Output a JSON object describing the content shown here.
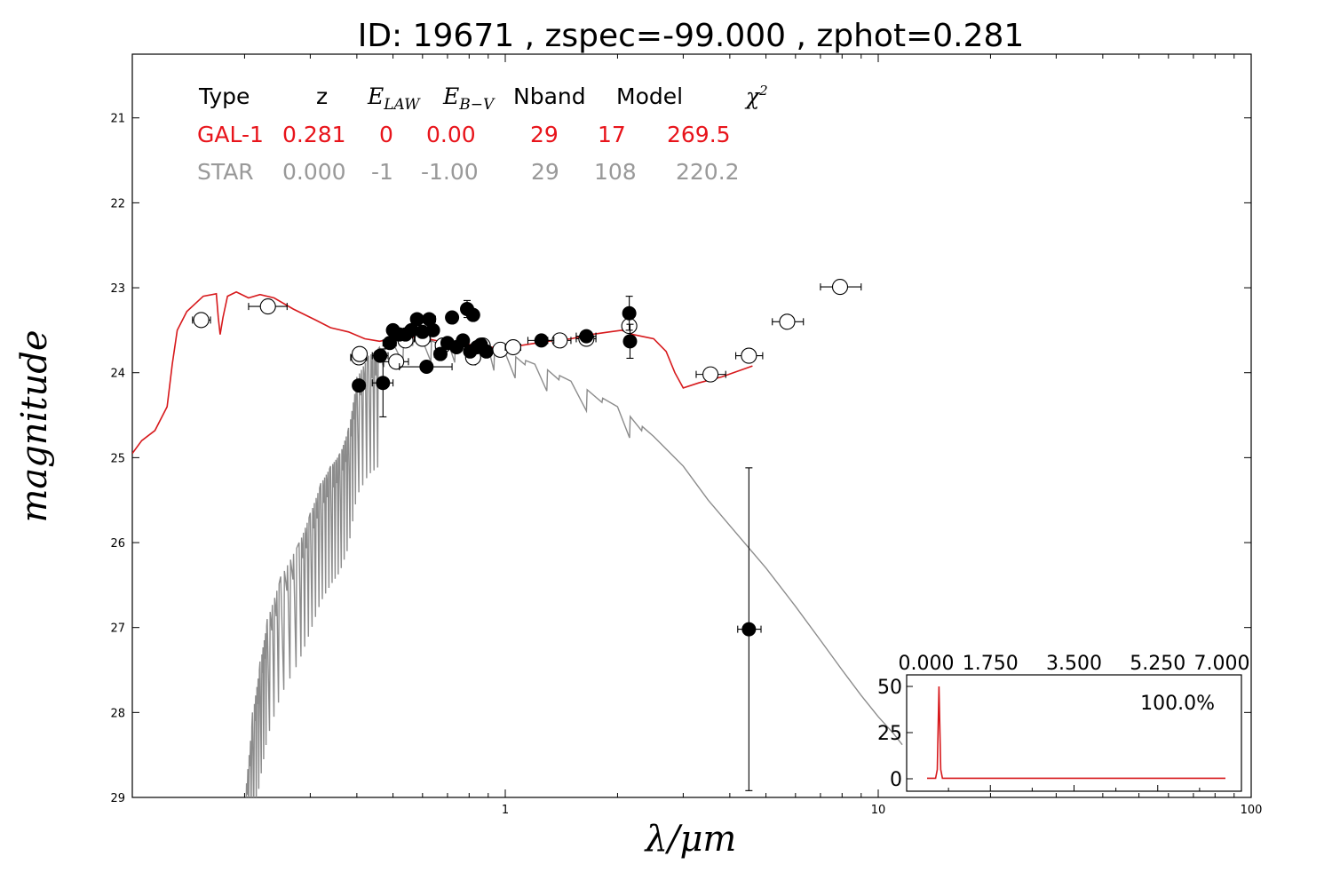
{
  "chart_data": {
    "type": "scatter",
    "title": "ID:  19671 , zspec=-99.000 , zphot=0.281",
    "xlabel": "λ/μm",
    "ylabel": "magnitude",
    "xscale": "log",
    "xlim": [
      0.1,
      100
    ],
    "ylim": [
      29,
      20.25
    ],
    "y_inverted": true,
    "x_tick_labels": [
      "1",
      "10",
      "100"
    ],
    "y_tick_labels": [
      "21",
      "22",
      "23",
      "24",
      "25",
      "26",
      "27",
      "28",
      "29"
    ],
    "table": {
      "headers": [
        "Type",
        "z",
        "E_LAW",
        "E_B-V",
        "Nband",
        "Model",
        "χ²"
      ],
      "rows": [
        {
          "name": "GAL-1",
          "color": "#e8141b",
          "values": [
            "GAL-1",
            "0.281",
            "0",
            "0.00",
            "29",
            "17",
            "269.5"
          ]
        },
        {
          "name": "STAR",
          "color": "#999999",
          "values": [
            "STAR",
            "0.000",
            "-1",
            "-1.00",
            "29",
            "108",
            "220.2"
          ]
        }
      ]
    },
    "series": [
      {
        "name": "galaxy template (GAL-1)",
        "kind": "line",
        "color": "#d7191c",
        "points": [
          [
            0.1,
            24.95
          ],
          [
            0.106,
            24.8
          ],
          [
            0.115,
            24.68
          ],
          [
            0.124,
            24.4
          ],
          [
            0.128,
            23.9
          ],
          [
            0.132,
            23.5
          ],
          [
            0.14,
            23.28
          ],
          [
            0.155,
            23.1
          ],
          [
            0.168,
            23.07
          ],
          [
            0.17,
            23.35
          ],
          [
            0.172,
            23.55
          ],
          [
            0.175,
            23.35
          ],
          [
            0.18,
            23.1
          ],
          [
            0.19,
            23.05
          ],
          [
            0.205,
            23.12
          ],
          [
            0.22,
            23.08
          ],
          [
            0.24,
            23.12
          ],
          [
            0.27,
            23.25
          ],
          [
            0.31,
            23.38
          ],
          [
            0.34,
            23.47
          ],
          [
            0.38,
            23.52
          ],
          [
            0.42,
            23.6
          ],
          [
            0.46,
            23.63
          ],
          [
            0.5,
            23.6
          ],
          [
            0.55,
            23.58
          ],
          [
            0.6,
            23.59
          ],
          [
            0.65,
            23.62
          ],
          [
            0.7,
            23.65
          ],
          [
            0.8,
            23.67
          ],
          [
            0.9,
            23.7
          ],
          [
            1.0,
            23.7
          ],
          [
            1.1,
            23.68
          ],
          [
            1.3,
            23.63
          ],
          [
            1.5,
            23.6
          ],
          [
            1.7,
            23.55
          ],
          [
            1.9,
            23.52
          ],
          [
            2.05,
            23.5
          ],
          [
            2.2,
            23.55
          ],
          [
            2.5,
            23.6
          ],
          [
            2.7,
            23.75
          ],
          [
            2.85,
            24.0
          ],
          [
            3.0,
            24.18
          ],
          [
            3.3,
            24.12
          ],
          [
            3.8,
            24.05
          ],
          [
            4.6,
            23.92
          ]
        ]
      },
      {
        "name": "star template (STAR)",
        "kind": "line",
        "color": "#8c8c8c",
        "points": [
          [
            0.2,
            29.0
          ],
          [
            0.21,
            28.0
          ],
          [
            0.22,
            27.4
          ],
          [
            0.23,
            26.9
          ],
          [
            0.25,
            26.4
          ],
          [
            0.28,
            26.0
          ],
          [
            0.3,
            25.65
          ],
          [
            0.32,
            25.3
          ],
          [
            0.34,
            25.1
          ],
          [
            0.36,
            24.95
          ],
          [
            0.38,
            24.65
          ],
          [
            0.4,
            24.05
          ],
          [
            0.43,
            23.8
          ],
          [
            0.46,
            23.7
          ],
          [
            0.5,
            23.65
          ],
          [
            0.6,
            23.62
          ],
          [
            0.7,
            23.62
          ],
          [
            0.8,
            23.65
          ],
          [
            0.9,
            23.7
          ],
          [
            1.0,
            23.77
          ],
          [
            1.2,
            23.9
          ],
          [
            1.5,
            24.1
          ],
          [
            2.0,
            24.4
          ],
          [
            2.5,
            24.75
          ],
          [
            3.0,
            25.1
          ],
          [
            3.5,
            25.5
          ],
          [
            4.0,
            25.8
          ],
          [
            5.0,
            26.3
          ],
          [
            6.0,
            26.75
          ],
          [
            7.0,
            27.15
          ],
          [
            8.0,
            27.5
          ],
          [
            9.0,
            27.8
          ],
          [
            10.0,
            28.05
          ],
          [
            11.0,
            28.25
          ],
          [
            11.6,
            28.38
          ]
        ]
      },
      {
        "name": "detections",
        "kind": "filled-points",
        "color": "#000000",
        "points": [
          {
            "x": 0.405,
            "y": 24.15,
            "xerr": [
              0.395,
              0.42
            ],
            "yerr": 0.05
          },
          {
            "x": 0.462,
            "y": 23.8,
            "xerr": [
              0.44,
              0.485
            ],
            "yerr": 0.05
          },
          {
            "x": 0.47,
            "y": 24.12,
            "xerr": [
              0.44,
              0.5
            ],
            "yerr": 0.4
          },
          {
            "x": 0.49,
            "y": 23.65,
            "xerr": [
              0.47,
              0.51
            ],
            "yerr": 0.05
          },
          {
            "x": 0.5,
            "y": 23.5,
            "xerr": [
              0.485,
              0.515
            ],
            "yerr": 0.05
          },
          {
            "x": 0.52,
            "y": 23.55,
            "xerr": [
              0.5,
              0.54
            ],
            "yerr": 0.05
          },
          {
            "x": 0.54,
            "y": 23.55,
            "xerr": [
              0.52,
              0.56
            ],
            "yerr": 0.05
          },
          {
            "x": 0.56,
            "y": 23.5,
            "xerr": [
              0.54,
              0.58
            ],
            "yerr": 0.05
          },
          {
            "x": 0.58,
            "y": 23.37,
            "xerr": [
              0.56,
              0.6
            ],
            "yerr": 0.05
          },
          {
            "x": 0.6,
            "y": 23.52,
            "xerr": [
              0.58,
              0.62
            ],
            "yerr": 0.05
          },
          {
            "x": 0.615,
            "y": 23.93,
            "xerr": [
              0.52,
              0.72
            ],
            "yerr": 0.05
          },
          {
            "x": 0.625,
            "y": 23.37,
            "xerr": [
              0.6,
              0.65
            ],
            "yerr": 0.05
          },
          {
            "x": 0.64,
            "y": 23.5,
            "xerr": [
              0.62,
              0.66
            ],
            "yerr": 0.05
          },
          {
            "x": 0.67,
            "y": 23.78,
            "xerr": [
              0.645,
              0.695
            ],
            "yerr": 0.05
          },
          {
            "x": 0.7,
            "y": 23.65,
            "xerr": [
              0.675,
              0.725
            ],
            "yerr": 0.05
          },
          {
            "x": 0.72,
            "y": 23.35,
            "xerr": [
              0.7,
              0.74
            ],
            "yerr": 0.05
          },
          {
            "x": 0.74,
            "y": 23.7,
            "xerr": [
              0.72,
              0.76
            ],
            "yerr": 0.05
          },
          {
            "x": 0.77,
            "y": 23.62,
            "xerr": [
              0.745,
              0.795
            ],
            "yerr": 0.05
          },
          {
            "x": 0.79,
            "y": 23.25,
            "xerr": [
              0.77,
              0.81
            ],
            "yerr": 0.1
          },
          {
            "x": 0.805,
            "y": 23.75,
            "xerr": [
              0.78,
              0.83
            ],
            "yerr": 0.05
          },
          {
            "x": 0.82,
            "y": 23.32,
            "xerr": [
              0.8,
              0.84
            ],
            "yerr": 0.05
          },
          {
            "x": 0.84,
            "y": 23.7,
            "xerr": [
              0.82,
              0.86
            ],
            "yerr": 0.05
          },
          {
            "x": 0.86,
            "y": 23.67,
            "xerr": [
              0.84,
              0.88
            ],
            "yerr": 0.05
          },
          {
            "x": 0.89,
            "y": 23.75,
            "xerr": [
              0.87,
              0.91
            ],
            "yerr": 0.05
          },
          {
            "x": 1.25,
            "y": 23.62,
            "xerr": [
              1.15,
              1.35
            ],
            "yerr": 0.05
          },
          {
            "x": 1.65,
            "y": 23.57,
            "xerr": [
              1.55,
              1.75
            ],
            "yerr": 0.05
          },
          {
            "x": 2.15,
            "y": 23.3,
            "xerr": [
              2.1,
              2.2
            ],
            "yerr": 0.2
          },
          {
            "x": 2.16,
            "y": 23.63,
            "xerr": [
              2.1,
              2.22
            ],
            "yerr": 0.2
          },
          {
            "x": 4.5,
            "y": 27.02,
            "xerr": [
              4.2,
              4.85
            ],
            "yerr": 1.9
          }
        ]
      },
      {
        "name": "model magnitudes",
        "kind": "open-points",
        "color": "#000000",
        "points": [
          {
            "x": 0.153,
            "y": 23.38,
            "xerr": [
              0.145,
              0.162
            ]
          },
          {
            "x": 0.231,
            "y": 23.22,
            "xerr": [
              0.205,
              0.26
            ]
          },
          {
            "x": 0.405,
            "y": 23.82,
            "xerr": [
              0.385,
              0.425
            ]
          },
          {
            "x": 0.407,
            "y": 23.78,
            "xerr": [
              0.39,
              0.425
            ]
          },
          {
            "x": 0.51,
            "y": 23.87,
            "xerr": [
              0.47,
              0.55
            ]
          },
          {
            "x": 0.54,
            "y": 23.62,
            "xerr": [
              0.52,
              0.56
            ]
          },
          {
            "x": 0.6,
            "y": 23.6,
            "xerr": [
              0.57,
              0.63
            ]
          },
          {
            "x": 0.68,
            "y": 23.68,
            "xerr": [
              0.65,
              0.71
            ]
          },
          {
            "x": 0.82,
            "y": 23.82,
            "xerr": [
              0.79,
              0.85
            ]
          },
          {
            "x": 0.87,
            "y": 23.68,
            "xerr": [
              0.84,
              0.9
            ]
          },
          {
            "x": 0.97,
            "y": 23.73,
            "xerr": [
              0.93,
              1.01
            ]
          },
          {
            "x": 1.05,
            "y": 23.7,
            "xerr": [
              1.0,
              1.1
            ]
          },
          {
            "x": 1.4,
            "y": 23.62,
            "xerr": [
              1.3,
              1.5
            ]
          },
          {
            "x": 1.65,
            "y": 23.6,
            "xerr": [
              1.55,
              1.75
            ]
          },
          {
            "x": 2.15,
            "y": 23.45,
            "xerr": [
              2.1,
              2.2
            ]
          },
          {
            "x": 3.55,
            "y": 24.02,
            "xerr": [
              3.25,
              3.9
            ]
          },
          {
            "x": 4.5,
            "y": 23.8,
            "xerr": [
              4.15,
              4.9
            ]
          },
          {
            "x": 5.7,
            "y": 23.4,
            "xerr": [
              5.2,
              6.3
            ]
          },
          {
            "x": 7.9,
            "y": 22.99,
            "xerr": [
              7.0,
              9.0
            ]
          }
        ]
      }
    ],
    "inset": {
      "type": "line",
      "color": "#d7191c",
      "top_tick_labels": [
        "0.000",
        "1.750",
        "3.500",
        "5.250",
        "7.000"
      ],
      "y_tick_labels": [
        "50",
        "25",
        "0"
      ],
      "xlim": [
        0.0,
        7.0
      ],
      "ylim": [
        0,
        50
      ],
      "annotation": "100.0%",
      "points": [
        [
          0.0,
          0.3
        ],
        [
          0.2,
          0.3
        ],
        [
          0.24,
          5
        ],
        [
          0.28,
          50
        ],
        [
          0.32,
          5
        ],
        [
          0.36,
          0.3
        ],
        [
          7.0,
          0.3
        ]
      ]
    }
  }
}
